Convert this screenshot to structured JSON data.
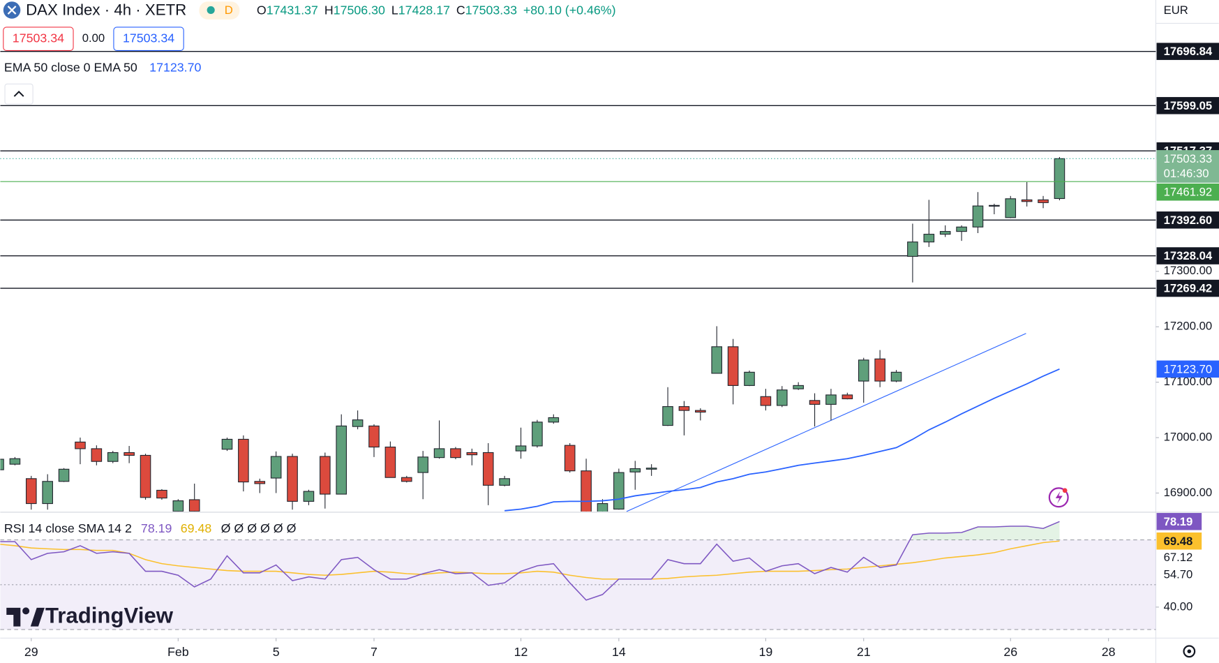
{
  "header": {
    "title": "DAX Index · 4h · XETR",
    "badge": "D",
    "ohlc": [
      {
        "key": "O",
        "value": "17431.37"
      },
      {
        "key": "H",
        "value": "17506.30"
      },
      {
        "key": "L",
        "value": "17428.17"
      },
      {
        "key": "C",
        "value": "17503.33"
      }
    ],
    "change": "+80.10 (+0.46%)"
  },
  "order_bar": {
    "sell": "17503.34",
    "spread": "0.00",
    "buy": "17503.34"
  },
  "currency": "EUR",
  "brand": "TradingView",
  "chart_data": [
    {
      "type": "candlestick",
      "categories": [
        null,
        null,
        null,
        null,
        null,
        null,
        null,
        null,
        null,
        null,
        null,
        null,
        null,
        null,
        null,
        null,
        null,
        null,
        null,
        null,
        null,
        null,
        null,
        null,
        null,
        null,
        null,
        null,
        null,
        null,
        null,
        null,
        null,
        null,
        null,
        null,
        null,
        null,
        null,
        null,
        null,
        null,
        null,
        null,
        null,
        null,
        null,
        null,
        null,
        null,
        null,
        null,
        null,
        null,
        null,
        null,
        null,
        null,
        null,
        null,
        null,
        null,
        null,
        null,
        null,
        null
      ],
      "open": [
        16942,
        16952,
        16926,
        16881,
        16921,
        16992,
        16980,
        16957,
        16973,
        16968,
        16905,
        16867,
        16888,
        null,
        16979,
        16997,
        16921,
        16927,
        16966,
        16885,
        16966,
        16898,
        17020,
        17021,
        16983,
        16928,
        16937,
        16964,
        16980,
        16973,
        16973,
        16914,
        16976,
        16985,
        17028,
        16986,
        16940,
        16853,
        16871,
        16938,
        16943,
        17022,
        17056,
        17049,
        17116,
        17164,
        17094,
        17074,
        17058,
        17088,
        17067,
        17060,
        17077,
        17102,
        17142,
        17102,
        17327,
        17353,
        17367,
        17372,
        17380,
        17418,
        17397,
        17429,
        17429,
        17431.37
      ],
      "high": [
        16964,
        16965,
        16931,
        16934,
        16945,
        17000,
        16986,
        16976,
        16985,
        16971,
        16907,
        16889,
        16917,
        null,
        17000,
        17004,
        16926,
        16975,
        16971,
        16906,
        16973,
        17042,
        17049,
        17024,
        16993,
        16931,
        16976,
        17031,
        16983,
        16980,
        16990,
        16931,
        17018,
        17032,
        17042,
        16990,
        16962,
        16889,
        16944,
        16958,
        16952,
        17091,
        17066,
        17053,
        17201,
        17178,
        17121,
        17088,
        17093,
        17100,
        17080,
        17088,
        17081,
        17144,
        17158,
        17122,
        17386,
        17429,
        17383,
        17383,
        17443,
        17422,
        17436,
        17461,
        17436,
        17506.3
      ],
      "low": [
        16940,
        16950,
        16870,
        16870,
        16920,
        16952,
        16950,
        16954,
        16954,
        16888,
        16888,
        16864,
        16864,
        null,
        16976,
        16903,
        16900,
        16900,
        16870,
        16878,
        16872,
        16898,
        17015,
        16965,
        16928,
        16919,
        16889,
        16962,
        16961,
        16950,
        16878,
        16912,
        16962,
        16982,
        17025,
        16937,
        16843,
        16847,
        16870,
        16906,
        16931,
        17021,
        17004,
        17031,
        17116,
        17060,
        17093,
        17049,
        17055,
        17086,
        17020,
        17031,
        17069,
        17063,
        17091,
        17100,
        17280,
        17344,
        17362,
        17355,
        17369,
        17403,
        17396,
        17417,
        17414,
        17428.17
      ],
      "close": [
        16961,
        16962,
        16881,
        16921,
        16943,
        16980,
        16957,
        16973,
        16968,
        16892,
        16891,
        16886,
        16867,
        null,
        16997,
        16920,
        16917,
        16966,
        16885,
        16903,
        16898,
        17021,
        17032,
        16983,
        16928,
        16921,
        16965,
        16980,
        16964,
        16969,
        16914,
        16926,
        16985,
        17028,
        17036,
        16940,
        16850,
        16881,
        16937,
        16944,
        16945,
        17056,
        17049,
        17046,
        17164,
        17094,
        17118,
        17058,
        17086,
        17094,
        17060,
        17077,
        17070,
        17140,
        17102,
        17118,
        17353,
        17367,
        17372,
        17380,
        17418,
        17419,
        17431,
        17426,
        17424,
        17503.33
      ],
      "colors": {
        "up": "#5f9f7b",
        "down": "#dc4a3d",
        "wick": "#22262f"
      },
      "series": [
        {
          "name": "EMA 50 close 0 EMA 50",
          "color": "#2962ff",
          "last_label": "17123.70",
          "values": [
            null,
            null,
            null,
            null,
            null,
            null,
            null,
            null,
            null,
            null,
            null,
            null,
            null,
            null,
            null,
            null,
            null,
            null,
            null,
            null,
            null,
            null,
            null,
            null,
            null,
            null,
            null,
            null,
            null,
            null,
            null,
            16868,
            16871,
            16876,
            16884,
            16885,
            16885,
            16886,
            16889,
            16895,
            16899,
            16903,
            16906,
            16910,
            16920,
            16926,
            16934,
            16938,
            16944,
            16950,
            16954,
            16958,
            16962,
            16968,
            16975,
            16982,
            16997,
            17014,
            17028,
            17043,
            17057,
            17071,
            17084,
            17097,
            17111,
            17123.7
          ]
        }
      ],
      "levels": [
        {
          "value": 17696.84,
          "label": "17696.84"
        },
        {
          "value": 17599.05,
          "label": "17599.05"
        },
        {
          "value": 17517.37,
          "label": "17517.37"
        },
        {
          "value": 17392.6,
          "label": "17392.60"
        },
        {
          "value": 17328.04,
          "label": "17328.04"
        },
        {
          "value": 17269.42,
          "label": "17269.42"
        }
      ],
      "last_price": {
        "value": 17503.33,
        "label": "17503.33",
        "countdown": "01:46:30",
        "color": "#7fb893"
      },
      "alert_line": {
        "value": 17461.92,
        "label": "17461.92",
        "color": "#4caf50"
      },
      "xlim": [
        0.1,
        70.9
      ],
      "ylim": [
        16866.8,
        17789.6
      ],
      "yticks": [
        {
          "value": 17300,
          "label": "17300.00"
        },
        {
          "value": 17200,
          "label": "17200.00"
        },
        {
          "value": 17100,
          "label": "17100.00"
        },
        {
          "value": 17000,
          "label": "17000.00"
        },
        {
          "value": 16900,
          "label": "16900.00"
        }
      ],
      "xticks": [
        {
          "value": 2,
          "label": "29"
        },
        {
          "value": 11,
          "label": "Feb"
        },
        {
          "value": 17,
          "label": "5"
        },
        {
          "value": 23,
          "label": "7"
        },
        {
          "value": 32,
          "label": "12"
        },
        {
          "value": 38,
          "label": "14"
        },
        {
          "value": 47,
          "label": "19"
        },
        {
          "value": 53,
          "label": "21"
        },
        {
          "value": 62,
          "label": "26"
        },
        {
          "value": 68,
          "label": "28"
        }
      ]
    },
    {
      "type": "line",
      "title": "RSI 14 close SMA 14 2",
      "hidden_values": "Ø Ø Ø Ø Ø Ø",
      "extra_axis_labels": [
        "67.12",
        "54.70"
      ],
      "series": [
        {
          "color": "#7e57c2",
          "last_label": "78.19",
          "values": [
            69.2,
            69.2,
            61.2,
            64.0,
            64.7,
            67.4,
            64.0,
            64.7,
            64.0,
            56.0,
            56.0,
            54.2,
            49.0,
            52.5,
            62.9,
            55.3,
            55.3,
            58.8,
            51.8,
            53.5,
            52.5,
            61.2,
            62.2,
            56.7,
            52.5,
            52.5,
            54.9,
            56.7,
            54.9,
            55.3,
            49.7,
            50.8,
            56.0,
            58.4,
            59.4,
            50.8,
            43.1,
            45.6,
            52.5,
            52.5,
            52.5,
            61.2,
            59.4,
            59.4,
            68.1,
            60.5,
            61.9,
            56.0,
            58.4,
            59.4,
            54.9,
            57.7,
            55.6,
            62.2,
            57.7,
            58.8,
            72.3,
            73.0,
            73.0,
            73.3,
            75.8,
            75.8,
            76.1,
            76.1,
            75.1,
            78.19
          ]
        },
        {
          "color": "#fbc02d",
          "last_label": "69.48",
          "values": [
            68.1,
            67.4,
            66.4,
            66.0,
            65.7,
            65.7,
            65.3,
            65.3,
            64.0,
            61.2,
            59.4,
            58.4,
            57.7,
            57.0,
            56.3,
            56.0,
            56.0,
            56.0,
            55.3,
            54.6,
            54.2,
            54.6,
            55.3,
            56.0,
            55.6,
            54.9,
            54.6,
            55.3,
            55.6,
            55.3,
            54.9,
            54.9,
            55.3,
            56.0,
            55.6,
            54.2,
            53.2,
            52.5,
            52.5,
            52.5,
            52.5,
            52.8,
            53.5,
            53.9,
            54.2,
            54.9,
            55.6,
            56.0,
            56.0,
            56.0,
            56.3,
            56.7,
            57.0,
            57.7,
            58.4,
            59.1,
            59.8,
            60.8,
            61.9,
            62.6,
            63.3,
            64.3,
            66.0,
            67.4,
            68.8,
            69.48
          ]
        }
      ],
      "bands": {
        "upper": 70,
        "middle": 50,
        "lower": 30
      },
      "ylim": [
        26.5,
        82.0
      ],
      "yticks": [
        {
          "value": 40,
          "label": "40.00"
        }
      ]
    }
  ]
}
